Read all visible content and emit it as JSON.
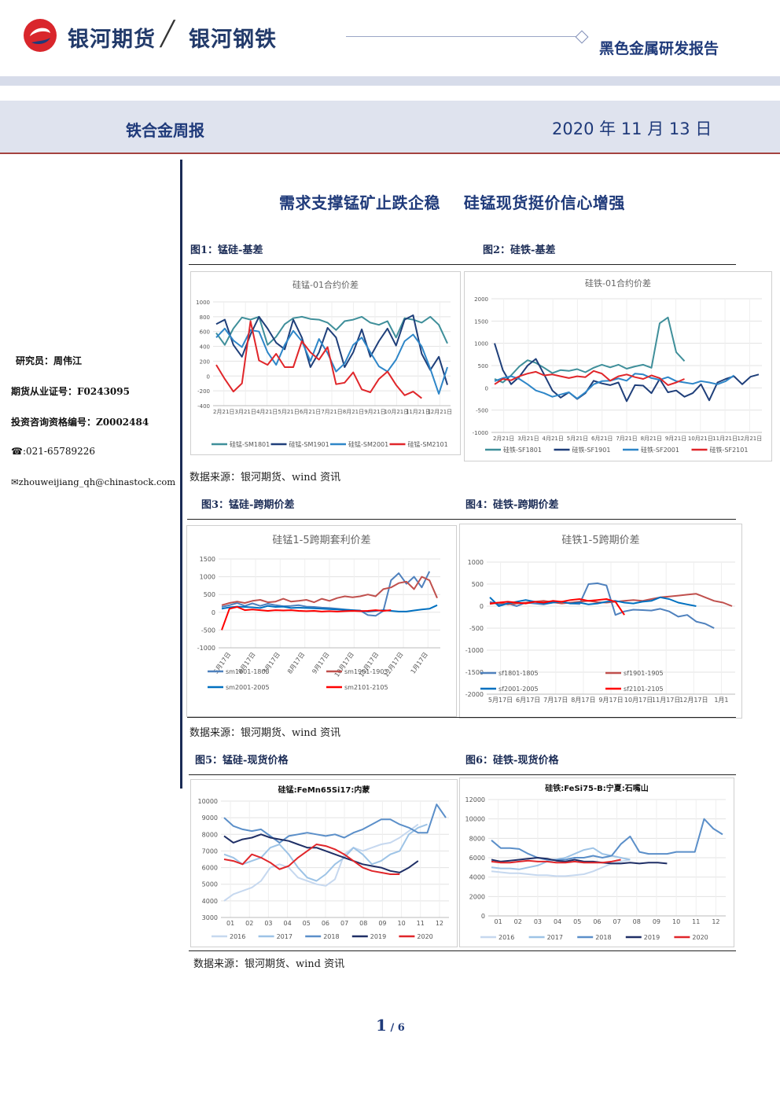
{
  "header": {
    "brand": "银河期货",
    "brand_secondary": "银河钢铁",
    "report_category": "黑色金属研发报告",
    "report_name": "铁合金周报",
    "date": "2020 年 11 月 13 日"
  },
  "sidebar": {
    "analyst": "研究员：周伟江",
    "license": "期货从业证号：F0243095",
    "consult_license": "投资咨询资格编号：Z0002484",
    "phone": "☎:021-65789226",
    "email": "✉zhouweijiang_qh@chinastock.com"
  },
  "main_title": "需求支撑锰矿止跌企稳    硅锰现货挺价信心增强",
  "figures": {
    "f1": "图1：锰硅-基差",
    "f2": "图2：硅铁-基差",
    "f3": "图3：锰硅-跨期价差",
    "f4": "图4：硅铁-跨期价差",
    "f5": "图5：锰硅-现货价格",
    "f6": "图6：硅铁-现货价格"
  },
  "source_note": "数据来源：银河期货、wind 资讯",
  "page": {
    "current": "1",
    "total": "6",
    "sep": " / "
  },
  "chart_data": [
    {
      "id": "c1",
      "type": "line",
      "title": "硅锰-01合约价差",
      "ylim": [
        -400,
        1000
      ],
      "yticks": [
        -400,
        -200,
        0,
        200,
        400,
        600,
        800,
        1000
      ],
      "xticks": [
        "2月21日",
        "3月21日",
        "4月21日",
        "5月21日",
        "6月21日",
        "7月21日",
        "8月21日",
        "9月21日",
        "10月21日",
        "11月21日",
        "12月21日"
      ],
      "series": [
        {
          "name": "硅锰-SM1801",
          "color": "#3f8f9a",
          "values": [
            580,
            420,
            640,
            790,
            760,
            800,
            420,
            530,
            700,
            780,
            800,
            770,
            760,
            720,
            620,
            740,
            760,
            800,
            720,
            690,
            740,
            520,
            780,
            760,
            720,
            800,
            690,
            440
          ]
        },
        {
          "name": "硅锰-SM1901",
          "color": "#1f3f7a",
          "values": [
            700,
            760,
            420,
            260,
            560,
            800,
            640,
            450,
            360,
            760,
            520,
            120,
            320,
            650,
            520,
            120,
            320,
            630,
            260,
            470,
            640,
            410,
            760,
            820,
            300,
            80,
            260,
            -120
          ]
        },
        {
          "name": "硅锰-SM2001",
          "color": "#2e86c8",
          "values": [
            520,
            640,
            480,
            390,
            620,
            600,
            320,
            150,
            420,
            610,
            470,
            200,
            500,
            310,
            60,
            170,
            420,
            520,
            320,
            130,
            60,
            220,
            470,
            560,
            400,
            100,
            -240,
            120
          ]
        },
        {
          "name": "硅锰-SM2101",
          "color": "#e0262a",
          "values": [
            150,
            -40,
            -210,
            -100,
            740,
            210,
            150,
            300,
            120,
            120,
            470,
            320,
            220,
            390,
            -110,
            -90,
            50,
            -180,
            -220,
            -40,
            60,
            -120,
            -260,
            -210,
            -300
          ]
        }
      ]
    },
    {
      "id": "c2",
      "type": "line",
      "title": "硅铁-01合约价差",
      "ylim": [
        -1000,
        2000
      ],
      "yticks": [
        -1000,
        -500,
        0,
        500,
        1000,
        1500,
        2000
      ],
      "xticks": [
        "2月21日",
        "3月21日",
        "4月21日",
        "5月21日",
        "6月21日",
        "7月21日",
        "8月21日",
        "9月21日",
        "10月21日",
        "11月21日",
        "12月21日"
      ],
      "series": [
        {
          "name": "硅铁-SF1801",
          "color": "#3f8f9a",
          "values": [
            200,
            120,
            280,
            480,
            620,
            560,
            450,
            330,
            400,
            380,
            420,
            350,
            450,
            520,
            460,
            520,
            430,
            480,
            520,
            450,
            1450,
            1580,
            800,
            600
          ]
        },
        {
          "name": "硅铁-SF1901",
          "color": "#1f3f7a",
          "values": [
            1000,
            400,
            80,
            250,
            500,
            650,
            300,
            -60,
            -220,
            -100,
            -250,
            -120,
            160,
            100,
            60,
            120,
            -300,
            60,
            50,
            -120,
            200,
            -100,
            -60,
            -200,
            -120,
            80,
            -280,
            120,
            200,
            260,
            80,
            250,
            300
          ]
        },
        {
          "name": "硅铁-SF2001",
          "color": "#2e86c8",
          "values": [
            150,
            220,
            260,
            200,
            80,
            -60,
            -120,
            -200,
            -150,
            -100,
            -240,
            -100,
            80,
            150,
            160,
            210,
            160,
            320,
            300,
            220,
            180,
            240,
            150,
            120,
            90,
            150,
            120,
            80,
            150,
            280
          ]
        },
        {
          "name": "硅铁-SF2101",
          "color": "#e0262a",
          "values": [
            80,
            200,
            170,
            260,
            320,
            360,
            280,
            300,
            260,
            220,
            260,
            240,
            380,
            320,
            160,
            260,
            300,
            240,
            200,
            280,
            220,
            60,
            120,
            200
          ]
        }
      ]
    },
    {
      "id": "c3",
      "type": "line",
      "title": "硅锰1-5跨期套利价差",
      "ylim": [
        -1000,
        1500
      ],
      "yticks": [
        -1000,
        -500,
        0,
        500,
        1000,
        1500
      ],
      "xticks": [
        "5月17日",
        "6月17日",
        "7月17日",
        "8月17日",
        "9月17日",
        "10月17日",
        "11月17日",
        "12月17日",
        "1月17日"
      ],
      "series": [
        {
          "name": "sm1801-1805",
          "color": "#4f81bd",
          "values": [
            150,
            200,
            260,
            180,
            250,
            180,
            240,
            200,
            170,
            180,
            200,
            160,
            150,
            130,
            120,
            100,
            80,
            60,
            50,
            -80,
            -100,
            40,
            900,
            1100,
            800,
            1000,
            700,
            1150
          ]
        },
        {
          "name": "sm1901-1905",
          "color": "#c0504d",
          "values": [
            200,
            260,
            300,
            260,
            320,
            350,
            280,
            300,
            380,
            300,
            320,
            350,
            280,
            380,
            320,
            400,
            450,
            420,
            450,
            500,
            450,
            650,
            700,
            820,
            860,
            650,
            1000,
            900,
            400
          ]
        },
        {
          "name": "sm2001-2005",
          "color": "#0070c0",
          "values": [
            100,
            140,
            160,
            150,
            140,
            120,
            180,
            150,
            160,
            120,
            130,
            120,
            110,
            100,
            90,
            80,
            70,
            60,
            40,
            20,
            40,
            60,
            40,
            20,
            20,
            50,
            80,
            100,
            200
          ]
        },
        {
          "name": "sm2101-2105",
          "color": "#ff0000",
          "values": [
            -500,
            100,
            150,
            60,
            80,
            60,
            40,
            60,
            50,
            60,
            40,
            30,
            40,
            20,
            30,
            20,
            30,
            40,
            30,
            40,
            60,
            40,
            60
          ]
        }
      ]
    },
    {
      "id": "c4",
      "type": "line",
      "title": "硅铁1-5跨期价差",
      "ylim": [
        -2000,
        1000
      ],
      "yticks": [
        -2000,
        -1500,
        -1000,
        -500,
        0,
        500,
        1000
      ],
      "xticks": [
        "5月17日",
        "6月17日",
        "7月17日",
        "8月17日",
        "9月17日",
        "10月17日",
        "11月17日",
        "12月17日",
        "1月1"
      ],
      "series": [
        {
          "name": "sf1801-1805",
          "color": "#4f81bd",
          "values": [
            100,
            40,
            60,
            0,
            80,
            60,
            40,
            80,
            100,
            60,
            50,
            500,
            520,
            470,
            -200,
            -120,
            -80,
            -90,
            -100,
            -60,
            -120,
            -240,
            -200,
            -350,
            -400,
            -500
          ]
        },
        {
          "name": "sf1901-1905",
          "color": "#c0504d",
          "values": [
            50,
            80,
            40,
            60,
            80,
            100,
            120,
            90,
            60,
            80,
            100,
            120,
            90,
            80,
            100,
            120,
            140,
            120,
            160,
            200,
            220,
            240,
            260,
            280,
            200,
            120,
            80,
            0
          ]
        },
        {
          "name": "sf2001-2005",
          "color": "#0070c0",
          "values": [
            200,
            0,
            60,
            100,
            140,
            100,
            60,
            80,
            100,
            60,
            80,
            40,
            60,
            100,
            120,
            80,
            60,
            100,
            120,
            200,
            160,
            80,
            40,
            0
          ]
        },
        {
          "name": "sf2101-2105",
          "color": "#ff0000",
          "values": [
            60,
            80,
            100,
            80,
            60,
            100,
            80,
            120,
            100,
            140,
            160,
            120,
            140,
            160,
            100,
            -200
          ]
        }
      ]
    },
    {
      "id": "c5",
      "type": "line",
      "title": "硅锰:FeMn65Si17:内蒙",
      "ylim": [
        3000,
        10000
      ],
      "yticks": [
        3000,
        4000,
        5000,
        6000,
        7000,
        8000,
        9000,
        10000
      ],
      "xticks": [
        "01",
        "02",
        "03",
        "04",
        "05",
        "06",
        "07",
        "08",
        "09",
        "10",
        "11",
        "12"
      ],
      "series": [
        {
          "name": "2016",
          "color": "#c6d8ef",
          "values": [
            4000,
            4400,
            4600,
            4800,
            5200,
            6000,
            6200,
            6000,
            5400,
            5200,
            5000,
            4900,
            5300,
            6800,
            7200,
            7000,
            7200,
            7400,
            7500,
            7800,
            8200,
            8600
          ]
        },
        {
          "name": "2017",
          "color": "#9dc3e6",
          "values": [
            6800,
            6600,
            6200,
            6400,
            6600,
            7200,
            7400,
            6800,
            6000,
            5400,
            5200,
            5600,
            6200,
            6600,
            7200,
            6800,
            6200,
            6400,
            6800,
            7000,
            8000,
            8400,
            8600
          ]
        },
        {
          "name": "2018",
          "color": "#5b8fc9",
          "values": [
            9000,
            8500,
            8300,
            8200,
            8300,
            7900,
            7500,
            7900,
            8000,
            8100,
            8000,
            7900,
            8000,
            7800,
            8100,
            8300,
            8600,
            8900,
            8900,
            8600,
            8400,
            8100,
            8100,
            9800,
            9000
          ]
        },
        {
          "name": "2019",
          "color": "#1f2f66",
          "values": [
            7900,
            7500,
            7700,
            7800,
            8000,
            7800,
            7700,
            7600,
            7400,
            7200,
            7200,
            7000,
            6800,
            6600,
            6400,
            6200,
            6100,
            6000,
            5800,
            5700,
            6000,
            6400
          ]
        },
        {
          "name": "2020",
          "color": "#e0262a",
          "values": [
            6500,
            6400,
            6200,
            6800,
            6600,
            6300,
            5900,
            6100,
            6600,
            7000,
            7400,
            7300,
            7100,
            6800,
            6400,
            6000,
            5800,
            5700,
            5600,
            5600
          ]
        }
      ]
    },
    {
      "id": "c6",
      "type": "line",
      "title": "硅铁:FeSi75-B:宁夏:石嘴山",
      "ylim": [
        0,
        12000
      ],
      "yticks": [
        0,
        2000,
        4000,
        6000,
        8000,
        10000,
        12000
      ],
      "xticks": [
        "01",
        "02",
        "03",
        "04",
        "05",
        "06",
        "07",
        "08",
        "09",
        "10",
        "11",
        "12"
      ],
      "series": [
        {
          "name": "2016",
          "color": "#c6d8ef",
          "values": [
            4600,
            4500,
            4400,
            4400,
            4300,
            4200,
            4200,
            4100,
            4100,
            4200,
            4300,
            4600,
            5000,
            5400,
            5600,
            5800
          ]
        },
        {
          "name": "2017",
          "color": "#9dc3e6",
          "values": [
            5000,
            4900,
            4900,
            4800,
            5000,
            5200,
            5600,
            5800,
            6000,
            6400,
            6800,
            7000,
            6400,
            6200,
            6000,
            5800
          ]
        },
        {
          "name": "2018",
          "color": "#5b8fc9",
          "values": [
            7800,
            7000,
            7000,
            6900,
            6400,
            6000,
            5800,
            5800,
            5800,
            6000,
            6000,
            6200,
            6000,
            6200,
            7400,
            8200,
            6600,
            6400,
            6400,
            6400,
            6600,
            6600,
            6600,
            10000,
            9000,
            8400
          ]
        },
        {
          "name": "2019",
          "color": "#1f2f66",
          "values": [
            5800,
            5600,
            5700,
            5800,
            5900,
            6000,
            5900,
            5700,
            5600,
            5800,
            5600,
            5600,
            5500,
            5400,
            5400,
            5500,
            5400,
            5500,
            5500,
            5400
          ]
        },
        {
          "name": "2020",
          "color": "#e0262a",
          "values": [
            5600,
            5500,
            5500,
            5600,
            5700,
            5600,
            5600,
            5500,
            5500,
            5600,
            5500,
            5500,
            5500,
            5600,
            5800
          ]
        }
      ]
    }
  ]
}
